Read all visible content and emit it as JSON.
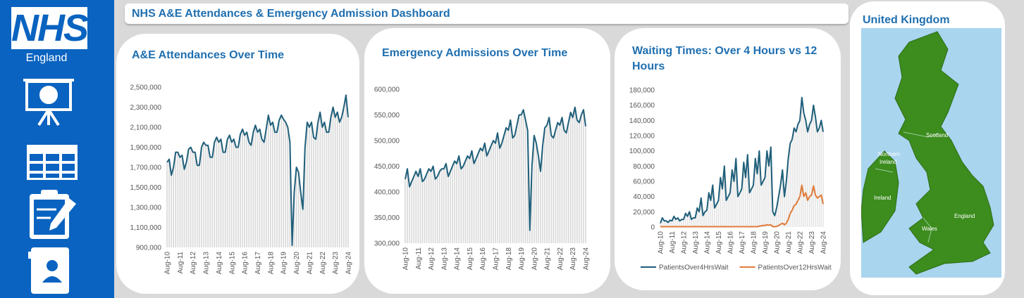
{
  "header": {
    "title": "NHS A&E  Attendances & Emergency Admission Dashboard"
  },
  "sidebar": {
    "logo": "NHS",
    "subtitle": "England"
  },
  "map": {
    "title": "United Kingdom",
    "labels": {
      "scotland": "Scotland",
      "northern_ireland": [
        "Northern",
        "Ireland"
      ],
      "ireland": "Ireland",
      "wales": "Wales",
      "england": "England"
    }
  },
  "chart_data": [
    {
      "type": "line",
      "title": "A&E Attendances Over Time",
      "color": "#1f5f7a",
      "bar_color": "#d9d9d9",
      "categories": [
        "Aug-10",
        null,
        null,
        null,
        null,
        null,
        "Aug-11",
        null,
        null,
        null,
        null,
        null,
        "Aug-12",
        null,
        null,
        null,
        null,
        null,
        "Aug-13",
        null,
        null,
        null,
        null,
        null,
        "Aug-14",
        null,
        null,
        null,
        null,
        null,
        "Aug-15",
        null,
        null,
        null,
        null,
        null,
        "Aug-16",
        null,
        null,
        null,
        null,
        null,
        "Aug-17",
        null,
        null,
        null,
        null,
        null,
        "Aug-18",
        null,
        null,
        null,
        null,
        null,
        "Aug-19",
        null,
        null,
        null,
        null,
        null,
        "Aug-20",
        null,
        null,
        null,
        null,
        null,
        "Aug-21",
        null,
        null,
        null,
        null,
        null,
        "Aug-22",
        null,
        null,
        null,
        null,
        null,
        "Aug-23",
        null,
        null,
        null,
        null,
        null,
        "Aug-24"
      ],
      "series": [
        {
          "color": "#1f5f7a",
          "values": [
            1750000,
            1780000,
            1620000,
            1700000,
            1850000,
            1850000,
            1800000,
            1820000,
            1680000,
            1750000,
            1880000,
            1900000,
            1850000,
            1850000,
            1720000,
            1720000,
            1900000,
            1950000,
            1920000,
            1920000,
            1800000,
            1800000,
            1950000,
            2000000,
            1950000,
            1980000,
            1850000,
            1850000,
            1980000,
            2020000,
            1950000,
            1980000,
            1900000,
            1900000,
            2030000,
            2080000,
            2020000,
            2050000,
            1950000,
            1920000,
            2050000,
            2120000,
            2050000,
            2080000,
            1980000,
            1950000,
            2080000,
            2220000,
            2120000,
            2150000,
            2050000,
            2050000,
            2170000,
            2220000,
            2180000,
            2150000,
            2100000,
            1950000,
            920000,
            1450000,
            1700000,
            1650000,
            1450000,
            1280000,
            1900000,
            2150000,
            2100000,
            2150000,
            2000000,
            1980000,
            2150000,
            2250000,
            2100000,
            2150000,
            2050000,
            2050000,
            2200000,
            2300000,
            2200000,
            2250000,
            2150000,
            2200000,
            2300000,
            2420000,
            2200000
          ]
        }
      ],
      "ylim": [
        900000,
        2500000
      ],
      "yticks": [
        {
          "value": 900000,
          "label": "900,000"
        },
        {
          "value": 1100000,
          "label": "1,100,000"
        },
        {
          "value": 1300000,
          "label": "1,300,000"
        },
        {
          "value": 1500000,
          "label": "1,500,000"
        },
        {
          "value": 1700000,
          "label": "1,700,000"
        },
        {
          "value": 1900000,
          "label": "1,900,000"
        },
        {
          "value": 2100000,
          "label": "2,100,000"
        },
        {
          "value": 2300000,
          "label": "2,300,000"
        },
        {
          "value": 2500000,
          "label": "2,500,000"
        }
      ]
    },
    {
      "type": "line",
      "title": "Emergency Admissions Over Time",
      "color": "#1f5f7a",
      "bar_color": "#d9d9d9",
      "categories": [
        "Aug-10",
        null,
        null,
        null,
        null,
        null,
        "Aug-11",
        null,
        null,
        null,
        null,
        null,
        "Aug-12",
        null,
        null,
        null,
        null,
        null,
        "Aug-13",
        null,
        null,
        null,
        null,
        null,
        "Aug-14",
        null,
        null,
        null,
        null,
        null,
        "Aug-15",
        null,
        null,
        null,
        null,
        null,
        "Aug-16",
        null,
        null,
        null,
        null,
        null,
        "Aug-17",
        null,
        null,
        null,
        null,
        null,
        "Aug-18",
        null,
        null,
        null,
        null,
        null,
        "Aug-19",
        null,
        null,
        null,
        null,
        null,
        "Aug-20",
        null,
        null,
        null,
        null,
        null,
        "Aug-21",
        null,
        null,
        null,
        null,
        null,
        "Aug-22",
        null,
        null,
        null,
        null,
        null,
        "Aug-23",
        null,
        null,
        null,
        null,
        null,
        "Aug-24"
      ],
      "series": [
        {
          "color": "#1f5f7a",
          "values": [
            425000,
            445000,
            410000,
            420000,
            430000,
            440000,
            430000,
            445000,
            420000,
            425000,
            435000,
            445000,
            440000,
            450000,
            425000,
            430000,
            440000,
            445000,
            445000,
            455000,
            430000,
            440000,
            450000,
            460000,
            455000,
            470000,
            445000,
            450000,
            460000,
            470000,
            465000,
            480000,
            455000,
            465000,
            475000,
            485000,
            480000,
            495000,
            470000,
            480000,
            490000,
            500000,
            495000,
            515000,
            485000,
            495000,
            510000,
            525000,
            520000,
            540000,
            505000,
            510000,
            530000,
            550000,
            550000,
            560000,
            540000,
            520000,
            325000,
            450000,
            510000,
            495000,
            470000,
            440000,
            490000,
            525000,
            530000,
            545000,
            510000,
            505000,
            520000,
            535000,
            530000,
            545000,
            520000,
            515000,
            535000,
            555000,
            545000,
            565000,
            540000,
            535000,
            550000,
            560000,
            528000
          ]
        }
      ],
      "ylim": [
        300000,
        600000
      ],
      "yticks": [
        {
          "value": 300000,
          "label": "300,000"
        },
        {
          "value": 350000,
          "label": "350,000"
        },
        {
          "value": 400000,
          "label": "400,000"
        },
        {
          "value": 450000,
          "label": "450,000"
        },
        {
          "value": 500000,
          "label": "500,000"
        },
        {
          "value": 550000,
          "label": "550,000"
        },
        {
          "value": 600000,
          "label": "600,000"
        }
      ]
    },
    {
      "type": "line",
      "title": "Waiting Times: Over 4 Hours vs 12 Hours",
      "bar_color": "#e3e3e3",
      "legend": "bottom",
      "categories": [
        "Aug-10",
        null,
        null,
        null,
        null,
        null,
        "Aug-11",
        null,
        null,
        null,
        null,
        null,
        "Aug-12",
        null,
        null,
        null,
        null,
        null,
        "Aug-13",
        null,
        null,
        null,
        null,
        null,
        "Aug-14",
        null,
        null,
        null,
        null,
        null,
        "Aug-15",
        null,
        null,
        null,
        null,
        null,
        "Aug-16",
        null,
        null,
        null,
        null,
        null,
        "Aug-17",
        null,
        null,
        null,
        null,
        null,
        "Aug-18",
        null,
        null,
        null,
        null,
        null,
        "Aug-19",
        null,
        null,
        null,
        null,
        null,
        "Aug-20",
        null,
        null,
        null,
        null,
        null,
        "Aug-21",
        null,
        null,
        null,
        null,
        null,
        "Aug-22",
        null,
        null,
        null,
        null,
        null,
        "Aug-23",
        null,
        null,
        null,
        null,
        null,
        "Aug-24"
      ],
      "series": [
        {
          "name": "PatientsOver4HrsWait",
          "color": "#1f5f7a",
          "values": [
            5000,
            12000,
            8000,
            8000,
            6000,
            9000,
            8000,
            14000,
            10000,
            12000,
            8000,
            10000,
            10000,
            18000,
            14000,
            20000,
            10000,
            12000,
            12000,
            25000,
            20000,
            38000,
            15000,
            20000,
            22000,
            45000,
            35000,
            55000,
            25000,
            30000,
            35000,
            65000,
            50000,
            80000,
            35000,
            40000,
            45000,
            75000,
            60000,
            90000,
            40000,
            45000,
            50000,
            85000,
            65000,
            95000,
            45000,
            50000,
            55000,
            90000,
            70000,
            100000,
            55000,
            60000,
            65000,
            100000,
            80000,
            105000,
            20000,
            15000,
            25000,
            40000,
            55000,
            75000,
            40000,
            60000,
            90000,
            110000,
            115000,
            130000,
            125000,
            135000,
            140000,
            170000,
            150000,
            140000,
            125000,
            135000,
            140000,
            160000,
            145000,
            125000,
            130000,
            140000,
            125000
          ]
        },
        {
          "name": "PatientsOver12HrsWait",
          "color": "#e07b39",
          "values": [
            500,
            500,
            500,
            500,
            500,
            500,
            500,
            500,
            500,
            500,
            500,
            500,
            500,
            500,
            500,
            500,
            500,
            500,
            500,
            500,
            500,
            500,
            500,
            500,
            500,
            500,
            500,
            500,
            500,
            500,
            500,
            500,
            500,
            500,
            500,
            500,
            500,
            500,
            500,
            500,
            500,
            500,
            500,
            500,
            500,
            500,
            500,
            500,
            500,
            500,
            500,
            1000,
            1500,
            2000,
            2000,
            3000,
            2500,
            3000,
            500,
            500,
            800,
            2000,
            3500,
            5000,
            3000,
            5000,
            10000,
            18000,
            22000,
            28000,
            30000,
            35000,
            40000,
            55000,
            40000,
            45000,
            35000,
            40000,
            42000,
            54000,
            42000,
            38000,
            40000,
            42000,
            30000
          ]
        }
      ],
      "ylim": [
        0,
        180000
      ],
      "yticks": [
        0,
        {
          "value": 20000,
          "label": "20,000"
        },
        {
          "value": 40000,
          "label": "40,000"
        },
        {
          "value": 60000,
          "label": "60,000"
        },
        {
          "value": 80000,
          "label": "80,000"
        },
        {
          "value": 100000,
          "label": "100,000"
        },
        {
          "value": 120000,
          "label": "120,000"
        },
        {
          "value": 140000,
          "label": "140,000"
        },
        {
          "value": 160000,
          "label": "160,000"
        },
        {
          "value": 180000,
          "label": "180,000"
        }
      ]
    }
  ]
}
